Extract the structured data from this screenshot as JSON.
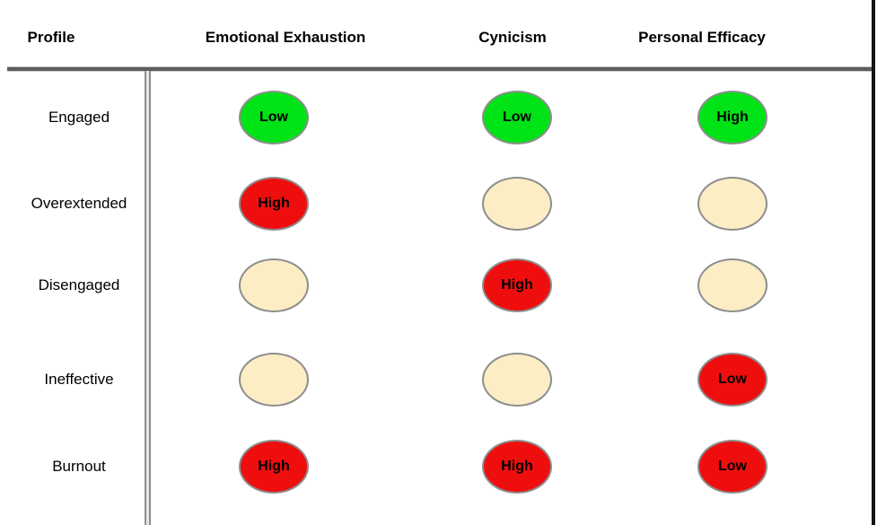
{
  "table": {
    "headers": {
      "profile": "Profile",
      "col1": "Emotional Exhaustion",
      "col2": "Cynicism",
      "col3": "Personal Efficacy"
    },
    "rows": [
      {
        "label": "Engaged",
        "cells": [
          {
            "text": "Low",
            "level": "good"
          },
          {
            "text": "Low",
            "level": "good"
          },
          {
            "text": "High",
            "level": "good"
          }
        ]
      },
      {
        "label": "Overextended",
        "cells": [
          {
            "text": "High",
            "level": "bad"
          },
          {
            "text": "",
            "level": "neutral"
          },
          {
            "text": "",
            "level": "neutral"
          }
        ]
      },
      {
        "label": "Disengaged",
        "cells": [
          {
            "text": "",
            "level": "neutral"
          },
          {
            "text": "High",
            "level": "bad"
          },
          {
            "text": "",
            "level": "neutral"
          }
        ]
      },
      {
        "label": "Ineffective",
        "cells": [
          {
            "text": "",
            "level": "neutral"
          },
          {
            "text": "",
            "level": "neutral"
          },
          {
            "text": "Low",
            "level": "bad"
          }
        ]
      },
      {
        "label": "Burnout",
        "cells": [
          {
            "text": "High",
            "level": "bad"
          },
          {
            "text": "High",
            "level": "bad"
          },
          {
            "text": "Low",
            "level": "bad"
          }
        ]
      }
    ]
  },
  "colors": {
    "good": "#00e317",
    "bad": "#ee0e0e",
    "neutral": "#fcedc5",
    "ellipse_border": "#8d8d8d",
    "header_rule": "#5e5e5e",
    "divider": "#8f8f8f",
    "right_border": "#151515"
  }
}
